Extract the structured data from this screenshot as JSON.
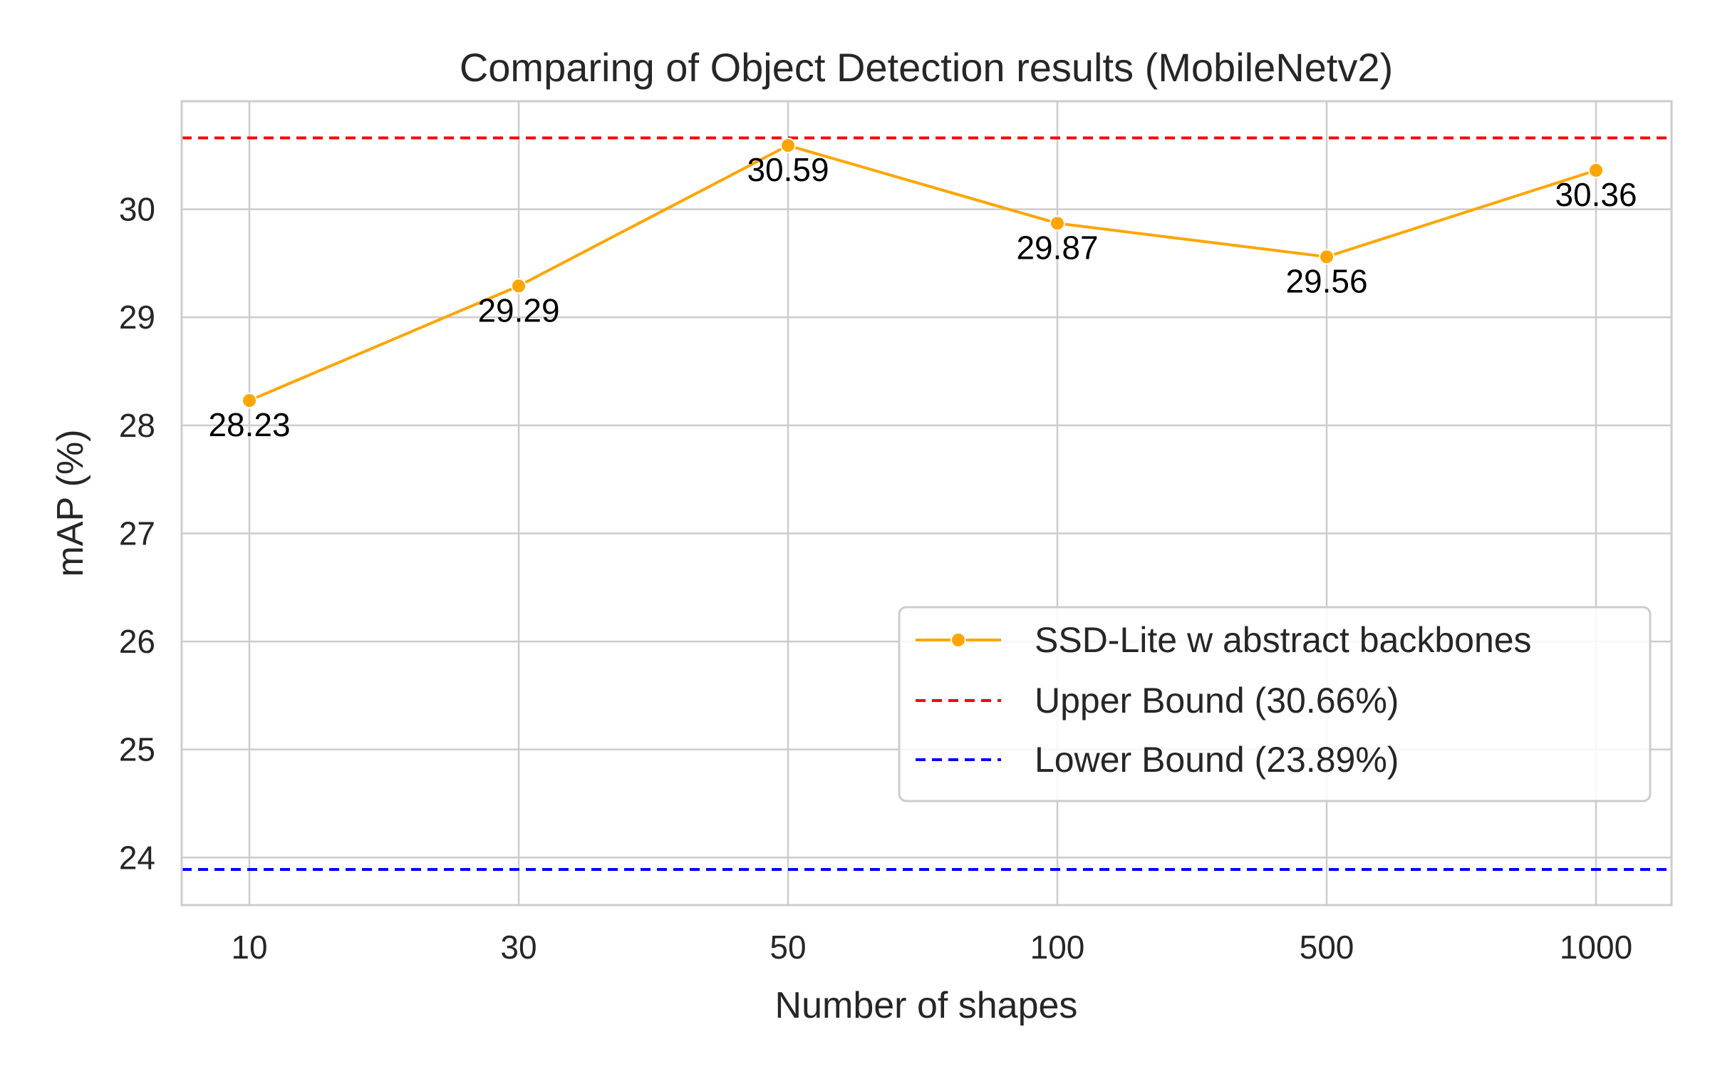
{
  "chart_data": {
    "type": "line",
    "title": "Comparing of Object Detection results (MobileNetv2)",
    "xlabel": "Number of shapes",
    "ylabel": "mAP (%)",
    "categories": [
      "10",
      "30",
      "50",
      "100",
      "500",
      "1000"
    ],
    "series": [
      {
        "name": "SSD-Lite w abstract backbones",
        "values": [
          28.23,
          29.29,
          30.59,
          29.87,
          29.56,
          30.36
        ],
        "labels": [
          "28.23",
          "29.29",
          "30.59",
          "29.87",
          "29.56",
          "30.36"
        ],
        "color": "#FFA500",
        "marker": "circle"
      }
    ],
    "reference_lines": [
      {
        "name": "Upper Bound (30.66%)",
        "value": 30.66,
        "color": "#FF0000",
        "style": "dashed"
      },
      {
        "name": "Lower Bound (23.89%)",
        "value": 23.89,
        "color": "#0000FF",
        "style": "dashed"
      }
    ],
    "yticks": [
      "24",
      "25",
      "26",
      "27",
      "28",
      "29",
      "30"
    ],
    "ylim": [
      23.56,
      31.0
    ],
    "grid": true,
    "legend_position": "center-right"
  }
}
